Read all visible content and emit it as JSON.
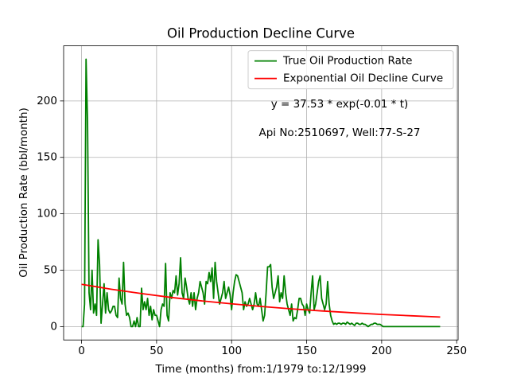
{
  "chart_data": {
    "type": "line",
    "title": "Oil Production Decline Curve",
    "xlabel": "Time (months) from:1/1979 to:12/1999",
    "ylabel": "Oil Production Rate (bbl/month)",
    "annotations": [
      "y = 37.53 * exp(-0.01 * t)",
      "Api No:2510697, Well:77-S-27"
    ],
    "xlim": [
      -11.95,
      250.95
    ],
    "ylim": [
      -11.85,
      248.85
    ],
    "xticks": [
      0,
      50,
      100,
      150,
      200,
      250
    ],
    "yticks": [
      0,
      50,
      100,
      150,
      200
    ],
    "grid": true,
    "legend": "upper right",
    "series": [
      {
        "name": "True Oil Production Rate",
        "color": "#008000",
        "x": [
          0,
          1,
          2,
          3,
          4,
          5,
          6,
          7,
          8,
          9,
          10,
          11,
          12,
          13,
          14,
          15,
          16,
          17,
          18,
          19,
          20,
          21,
          22,
          23,
          24,
          25,
          26,
          27,
          28,
          29,
          30,
          31,
          32,
          33,
          34,
          35,
          36,
          37,
          38,
          39,
          40,
          41,
          42,
          43,
          44,
          45,
          46,
          47,
          48,
          49,
          50,
          51,
          52,
          53,
          54,
          55,
          56,
          57,
          58,
          59,
          60,
          61,
          62,
          63,
          64,
          65,
          66,
          67,
          68,
          69,
          70,
          71,
          72,
          73,
          74,
          75,
          76,
          77,
          78,
          79,
          80,
          81,
          82,
          83,
          84,
          85,
          86,
          87,
          88,
          89,
          90,
          91,
          92,
          93,
          94,
          95,
          96,
          97,
          98,
          99,
          100,
          101,
          102,
          103,
          104,
          105,
          106,
          107,
          108,
          109,
          110,
          111,
          112,
          113,
          114,
          115,
          116,
          117,
          118,
          119,
          120,
          121,
          122,
          123,
          124,
          125,
          126,
          127,
          128,
          129,
          130,
          131,
          132,
          133,
          134,
          135,
          136,
          137,
          138,
          139,
          140,
          141,
          142,
          143,
          144,
          145,
          146,
          147,
          148,
          149,
          150,
          151,
          152,
          153,
          154,
          155,
          156,
          157,
          158,
          159,
          160,
          161,
          162,
          163,
          164,
          165,
          166,
          167,
          168,
          169,
          170,
          171,
          172,
          173,
          174,
          175,
          176,
          177,
          178,
          179,
          180,
          181,
          182,
          183,
          184,
          185,
          186,
          187,
          188,
          189,
          190,
          191,
          192,
          193,
          194,
          195,
          196,
          197,
          198,
          199,
          200,
          201,
          202,
          203,
          204,
          205,
          206,
          207,
          208,
          209,
          210,
          211,
          212,
          213,
          214,
          215,
          216,
          217,
          218,
          219,
          220,
          221,
          222,
          223,
          224,
          225,
          226,
          227,
          228,
          229,
          230,
          231,
          232,
          233,
          234,
          235,
          236,
          237,
          238,
          239
        ],
        "values": [
          0,
          0,
          20,
          237,
          180,
          30,
          15,
          50,
          12,
          20,
          10,
          77,
          55,
          3,
          20,
          38,
          12,
          30,
          15,
          12,
          14,
          18,
          18,
          10,
          8,
          43,
          25,
          20,
          57,
          20,
          10,
          12,
          8,
          0,
          0,
          5,
          0,
          8,
          0,
          0,
          34,
          15,
          22,
          15,
          25,
          10,
          18,
          6,
          15,
          10,
          10,
          5,
          0,
          15,
          20,
          18,
          56,
          10,
          5,
          30,
          25,
          32,
          30,
          45,
          28,
          38,
          61,
          30,
          25,
          43,
          35,
          25,
          20,
          30,
          18,
          30,
          15,
          25,
          30,
          40,
          35,
          30,
          20,
          40,
          38,
          48,
          40,
          52,
          25,
          57,
          40,
          30,
          20,
          25,
          30,
          40,
          25,
          30,
          35,
          28,
          15,
          30,
          40,
          46,
          45,
          40,
          35,
          30,
          15,
          22,
          18,
          20,
          25,
          20,
          15,
          20,
          30,
          20,
          18,
          25,
          15,
          5,
          10,
          30,
          53,
          53,
          55,
          35,
          25,
          30,
          35,
          45,
          22,
          30,
          25,
          45,
          30,
          20,
          15,
          10,
          20,
          5,
          8,
          7,
          15,
          25,
          25,
          20,
          18,
          10,
          20,
          15,
          12,
          30,
          45,
          15,
          20,
          30,
          40,
          45,
          25,
          20,
          15,
          20,
          40,
          20,
          10,
          5,
          2,
          3,
          2,
          3,
          3,
          2,
          3,
          3,
          2,
          4,
          3,
          2,
          3,
          2,
          1,
          3,
          3,
          2,
          2,
          3,
          2,
          2,
          1,
          0,
          1,
          2,
          2,
          3,
          3,
          2,
          2,
          2,
          1,
          0,
          0,
          0,
          0,
          0,
          0,
          0,
          0,
          0,
          0,
          0,
          0,
          0,
          0,
          0,
          0,
          0,
          0,
          0,
          0,
          0,
          0,
          0,
          0,
          0,
          0,
          0,
          0,
          0,
          0,
          0,
          0,
          0,
          0,
          0,
          0,
          0,
          0,
          0
        ]
      },
      {
        "name": "Exponential Oil Decline Curve",
        "color": "#ff0000",
        "x": [
          0,
          20,
          40,
          60,
          80,
          100,
          120,
          140,
          160,
          180,
          200,
          220,
          239
        ],
        "values": [
          37.5,
          33.1,
          29.3,
          25.8,
          22.8,
          20.2,
          17.8,
          15.7,
          13.9,
          12.3,
          10.8,
          9.6,
          8.5
        ]
      }
    ]
  }
}
